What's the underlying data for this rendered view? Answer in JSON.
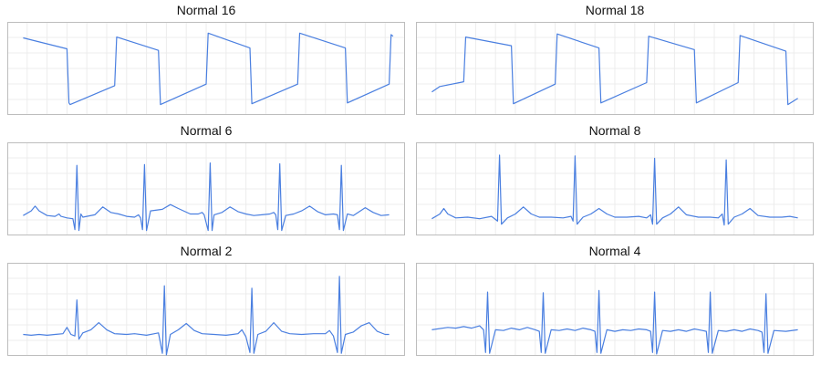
{
  "colors": {
    "line": "#4a7fe0",
    "grid": "#ececec",
    "frame": "#bdbdbd"
  },
  "chart_data": [
    {
      "type": "line",
      "title": "Normal 16",
      "grid": true,
      "ylim": [
        0,
        100
      ],
      "xlim": [
        0,
        100
      ],
      "series": [
        {
          "points": [
            [
              4,
              89
            ],
            [
              15,
              75
            ],
            [
              15.5,
              6
            ],
            [
              15.8,
              4
            ],
            [
              27,
              28
            ],
            [
              27.5,
              90
            ],
            [
              38,
              73
            ],
            [
              38.5,
              4
            ],
            [
              50,
              30
            ],
            [
              50.5,
              95
            ],
            [
              61,
              76
            ],
            [
              61.5,
              5
            ],
            [
              73,
              30
            ],
            [
              73.5,
              95
            ],
            [
              85,
              76
            ],
            [
              85.5,
              6
            ],
            [
              96,
              30
            ],
            [
              96.5,
              93
            ],
            [
              97,
              91
            ]
          ]
        }
      ]
    },
    {
      "type": "line",
      "title": "Normal 18",
      "grid": true,
      "ylim": [
        0,
        100
      ],
      "xlim": [
        0,
        100
      ],
      "series": [
        {
          "points": [
            [
              4,
              20
            ],
            [
              6,
              27
            ],
            [
              12,
              33
            ],
            [
              12.5,
              90
            ],
            [
              24,
              79
            ],
            [
              24.5,
              5
            ],
            [
              35,
              30
            ],
            [
              35.5,
              94
            ],
            [
              46,
              76
            ],
            [
              46.5,
              6
            ],
            [
              58,
              32
            ],
            [
              58.5,
              91
            ],
            [
              70,
              74
            ],
            [
              70.5,
              6
            ],
            [
              81,
              32
            ],
            [
              81.5,
              92
            ],
            [
              93,
              72
            ],
            [
              93.5,
              4
            ],
            [
              96,
              12
            ]
          ]
        }
      ]
    },
    {
      "type": "line",
      "title": "Normal 6",
      "grid": true,
      "ylim": [
        0,
        100
      ],
      "xlim": [
        0,
        100
      ],
      "series": [
        {
          "points": [
            [
              4,
              16
            ],
            [
              6,
              22
            ],
            [
              7,
              28
            ],
            [
              8,
              22
            ],
            [
              10,
              16
            ],
            [
              12,
              15
            ],
            [
              13,
              18
            ],
            [
              13.5,
              15
            ],
            [
              15,
              13
            ],
            [
              16.5,
              12
            ],
            [
              17,
              -2
            ],
            [
              17.5,
              80
            ],
            [
              18,
              -3
            ],
            [
              18.5,
              18
            ],
            [
              19,
              14
            ],
            [
              22,
              17
            ],
            [
              24,
              27
            ],
            [
              26,
              20
            ],
            [
              28,
              18
            ],
            [
              30,
              15
            ],
            [
              32,
              14
            ],
            [
              33,
              17
            ],
            [
              33.5,
              13
            ],
            [
              34,
              -2
            ],
            [
              34.5,
              81
            ],
            [
              35,
              -3
            ],
            [
              36,
              22
            ],
            [
              39,
              24
            ],
            [
              41,
              30
            ],
            [
              43,
              25
            ],
            [
              46,
              18
            ],
            [
              48,
              18
            ],
            [
              49,
              20
            ],
            [
              49.5,
              17
            ],
            [
              50.5,
              -3
            ],
            [
              51,
              83
            ],
            [
              51.5,
              -3
            ],
            [
              52,
              17
            ],
            [
              54,
              20
            ],
            [
              56,
              27
            ],
            [
              58,
              21
            ],
            [
              60,
              18
            ],
            [
              62,
              16
            ],
            [
              64,
              17
            ],
            [
              66,
              18
            ],
            [
              67,
              20
            ],
            [
              67.5,
              17
            ],
            [
              68,
              -2
            ],
            [
              68.5,
              82
            ],
            [
              69,
              -3
            ],
            [
              70,
              16
            ],
            [
              72,
              18
            ],
            [
              74,
              22
            ],
            [
              76,
              28
            ],
            [
              78,
              21
            ],
            [
              80,
              17
            ],
            [
              82,
              18
            ],
            [
              83,
              17
            ],
            [
              83.5,
              -2
            ],
            [
              84,
              80
            ],
            [
              84.5,
              -3
            ],
            [
              85.5,
              18
            ],
            [
              87,
              16
            ],
            [
              90,
              26
            ],
            [
              92,
              20
            ],
            [
              94,
              16
            ],
            [
              96,
              17
            ]
          ]
        }
      ]
    },
    {
      "type": "line",
      "title": "Normal 8",
      "grid": true,
      "ylim": [
        0,
        100
      ],
      "xlim": [
        0,
        100
      ],
      "series": [
        {
          "points": [
            [
              4,
              12
            ],
            [
              6,
              18
            ],
            [
              7,
              25
            ],
            [
              8,
              18
            ],
            [
              10,
              13
            ],
            [
              13,
              14
            ],
            [
              16,
              12
            ],
            [
              19,
              15
            ],
            [
              20,
              11
            ],
            [
              20.5,
              9
            ],
            [
              21,
              93
            ],
            [
              21.5,
              5
            ],
            [
              23,
              13
            ],
            [
              25,
              18
            ],
            [
              27,
              27
            ],
            [
              29,
              18
            ],
            [
              31,
              14
            ],
            [
              34,
              14
            ],
            [
              37,
              13
            ],
            [
              39,
              15
            ],
            [
              39.5,
              9
            ],
            [
              40,
              92
            ],
            [
              40.5,
              5
            ],
            [
              42,
              14
            ],
            [
              44,
              18
            ],
            [
              46,
              25
            ],
            [
              48,
              18
            ],
            [
              50,
              14
            ],
            [
              53,
              14
            ],
            [
              56,
              15
            ],
            [
              58,
              13
            ],
            [
              59,
              17
            ],
            [
              59.5,
              5
            ],
            [
              60,
              89
            ],
            [
              60.5,
              5
            ],
            [
              62,
              13
            ],
            [
              64,
              18
            ],
            [
              66,
              27
            ],
            [
              68,
              17
            ],
            [
              71,
              14
            ],
            [
              74,
              14
            ],
            [
              76,
              13
            ],
            [
              77,
              18
            ],
            [
              77.5,
              4
            ],
            [
              78,
              87
            ],
            [
              78.5,
              5
            ],
            [
              80,
              14
            ],
            [
              82,
              18
            ],
            [
              84,
              25
            ],
            [
              86,
              16
            ],
            [
              89,
              14
            ],
            [
              92,
              14
            ],
            [
              94,
              15
            ],
            [
              96,
              13
            ]
          ]
        }
      ]
    },
    {
      "type": "line",
      "title": "Normal 2",
      "grid": true,
      "ylim": [
        0,
        100
      ],
      "xlim": [
        0,
        100
      ],
      "series": [
        {
          "points": [
            [
              4,
              18
            ],
            [
              6,
              17
            ],
            [
              8,
              18
            ],
            [
              10,
              17
            ],
            [
              12,
              18
            ],
            [
              14,
              19
            ],
            [
              15,
              27
            ],
            [
              16,
              18
            ],
            [
              17,
              16
            ],
            [
              17.5,
              62
            ],
            [
              18,
              12
            ],
            [
              19,
              20
            ],
            [
              21,
              24
            ],
            [
              23,
              33
            ],
            [
              25,
              24
            ],
            [
              27,
              19
            ],
            [
              30,
              18
            ],
            [
              32,
              19
            ],
            [
              35,
              17
            ],
            [
              37,
              19
            ],
            [
              38,
              20
            ],
            [
              39,
              -6
            ],
            [
              39.5,
              80
            ],
            [
              40,
              -8
            ],
            [
              41,
              18
            ],
            [
              43,
              24
            ],
            [
              45,
              32
            ],
            [
              47,
              23
            ],
            [
              49,
              19
            ],
            [
              52,
              18
            ],
            [
              55,
              17
            ],
            [
              58,
              19
            ],
            [
              59,
              24
            ],
            [
              60,
              15
            ],
            [
              61,
              -5
            ],
            [
              61.5,
              77
            ],
            [
              62,
              -6
            ],
            [
              63,
              18
            ],
            [
              65,
              22
            ],
            [
              67,
              33
            ],
            [
              69,
              22
            ],
            [
              71,
              19
            ],
            [
              74,
              18
            ],
            [
              77,
              19
            ],
            [
              80,
              19
            ],
            [
              81,
              23
            ],
            [
              82,
              16
            ],
            [
              83,
              -5
            ],
            [
              83.5,
              92
            ],
            [
              84,
              -6
            ],
            [
              85,
              18
            ],
            [
              87,
              21
            ],
            [
              89,
              29
            ],
            [
              91,
              33
            ],
            [
              93,
              22
            ],
            [
              95,
              18
            ],
            [
              96,
              18
            ]
          ]
        }
      ]
    },
    {
      "type": "line",
      "title": "Normal 4",
      "grid": true,
      "ylim": [
        0,
        100
      ],
      "xlim": [
        0,
        100
      ],
      "series": [
        {
          "points": [
            [
              4,
              24
            ],
            [
              8,
              27
            ],
            [
              10,
              26
            ],
            [
              12,
              28
            ],
            [
              14,
              26
            ],
            [
              16,
              29
            ],
            [
              17,
              24
            ],
            [
              17.5,
              -5
            ],
            [
              18,
              72
            ],
            [
              18.5,
              -6
            ],
            [
              20,
              24
            ],
            [
              22,
              23
            ],
            [
              24,
              26
            ],
            [
              26,
              24
            ],
            [
              28,
              27
            ],
            [
              30,
              24
            ],
            [
              31,
              22
            ],
            [
              31.5,
              -5
            ],
            [
              32,
              71
            ],
            [
              32.5,
              -6
            ],
            [
              34,
              24
            ],
            [
              36,
              23
            ],
            [
              38,
              25
            ],
            [
              40,
              23
            ],
            [
              42,
              26
            ],
            [
              44,
              24
            ],
            [
              45,
              22
            ],
            [
              45.5,
              -5
            ],
            [
              46,
              74
            ],
            [
              46.5,
              -6
            ],
            [
              48,
              24
            ],
            [
              50,
              22
            ],
            [
              52,
              24
            ],
            [
              54,
              23
            ],
            [
              56,
              25
            ],
            [
              58,
              24
            ],
            [
              59,
              22
            ],
            [
              59.5,
              -5
            ],
            [
              60,
              72
            ],
            [
              60.5,
              -7
            ],
            [
              62,
              23
            ],
            [
              64,
              22
            ],
            [
              66,
              24
            ],
            [
              68,
              22
            ],
            [
              70,
              25
            ],
            [
              72,
              23
            ],
            [
              73,
              22
            ],
            [
              73.5,
              -5
            ],
            [
              74,
              72
            ],
            [
              74.5,
              -6
            ],
            [
              76,
              23
            ],
            [
              78,
              22
            ],
            [
              80,
              24
            ],
            [
              82,
              22
            ],
            [
              84,
              25
            ],
            [
              86,
              23
            ],
            [
              87,
              21
            ],
            [
              87.5,
              -5
            ],
            [
              88,
              70
            ],
            [
              88.5,
              -6
            ],
            [
              90,
              23
            ],
            [
              93,
              22
            ],
            [
              96,
              24
            ]
          ]
        }
      ]
    }
  ]
}
